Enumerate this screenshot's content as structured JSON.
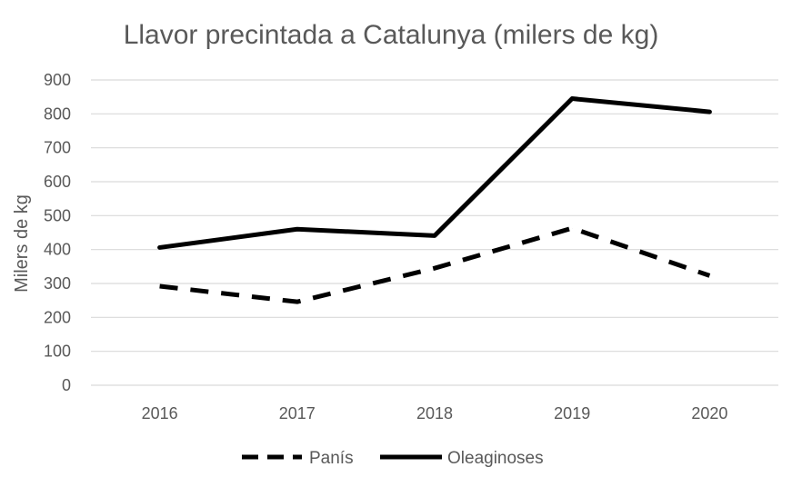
{
  "chart_data": {
    "type": "line",
    "title": "Llavor precintada a Catalunya (milers de kg)",
    "xlabel": "",
    "ylabel": "Milers de kg",
    "categories": [
      "2016",
      "2017",
      "2018",
      "2019",
      "2020"
    ],
    "ylim": [
      0,
      900
    ],
    "yticks": [
      0,
      100,
      200,
      300,
      400,
      500,
      600,
      700,
      800,
      900
    ],
    "grid": true,
    "legend_position": "bottom",
    "series": [
      {
        "name": "Panís",
        "values": [
          292,
          246,
          345,
          463,
          323
        ],
        "style": "dashed",
        "color": "#000000"
      },
      {
        "name": "Oleaginoses",
        "values": [
          406,
          460,
          441,
          845,
          806
        ],
        "style": "solid",
        "color": "#000000"
      }
    ]
  }
}
